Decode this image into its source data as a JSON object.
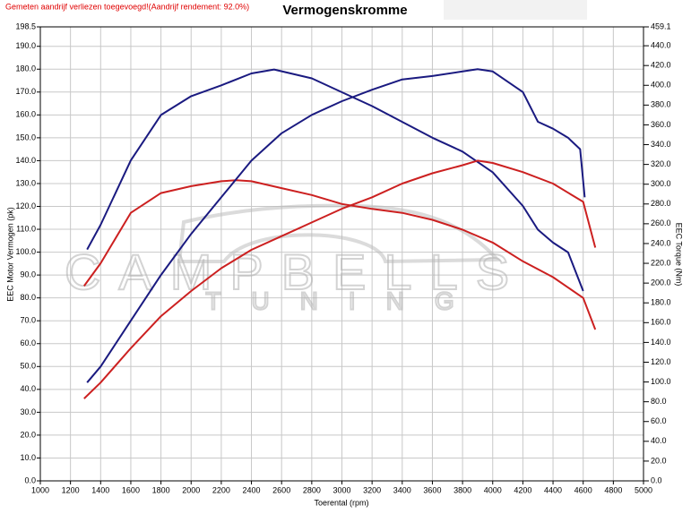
{
  "chart_data": {
    "type": "line",
    "notice": "Gemeten aandrijf verliezen toegevoegd!(Aandrijf rendement: 92.0%)",
    "title": "Vermogenskromme",
    "xlabel": "Toerental (rpm)",
    "ylabel": "EEC Motor Vermogen (pk)",
    "y2label": "EEC Torque (Nm)",
    "watermark": [
      "CAMPBELLS",
      "TUNING"
    ],
    "grid": true,
    "xlim": [
      1000,
      5000
    ],
    "xticks": [
      1000,
      1200,
      1400,
      1600,
      1800,
      2000,
      2200,
      2400,
      2600,
      2800,
      3000,
      3200,
      3400,
      3600,
      3800,
      4000,
      4200,
      4400,
      4600,
      4800,
      5000
    ],
    "ylim": [
      0,
      198.5
    ],
    "yticks": [
      {
        "value": 0,
        "label": "0.0"
      },
      {
        "value": 10,
        "label": "10.0"
      },
      {
        "value": 20,
        "label": "20.0"
      },
      {
        "value": 30,
        "label": "30.0"
      },
      {
        "value": 40,
        "label": "40.0"
      },
      {
        "value": 50,
        "label": "50.0"
      },
      {
        "value": 60,
        "label": "60.0"
      },
      {
        "value": 70,
        "label": "70.0"
      },
      {
        "value": 80,
        "label": "80.0"
      },
      {
        "value": 90,
        "label": "90.0"
      },
      {
        "value": 100,
        "label": "100.0"
      },
      {
        "value": 110,
        "label": "110.0"
      },
      {
        "value": 120,
        "label": "120.0"
      },
      {
        "value": 130,
        "label": "130.0"
      },
      {
        "value": 140,
        "label": "140.0"
      },
      {
        "value": 150,
        "label": "150.0"
      },
      {
        "value": 160,
        "label": "160.0"
      },
      {
        "value": 170,
        "label": "170.0"
      },
      {
        "value": 180,
        "label": "180.0"
      },
      {
        "value": 190,
        "label": "190.0"
      },
      198.5
    ],
    "y2lim": [
      0,
      459.1
    ],
    "y2ticks": [
      {
        "value": 0,
        "label": "0.0"
      },
      {
        "value": 20,
        "label": "20.0"
      },
      {
        "value": 40,
        "label": "40.0"
      },
      {
        "value": 60,
        "label": "60.0"
      },
      {
        "value": 80,
        "label": "80.0"
      },
      {
        "value": 100,
        "label": "100.0"
      },
      {
        "value": 120,
        "label": "120.0"
      },
      {
        "value": 140,
        "label": "140.0"
      },
      {
        "value": 160,
        "label": "160.0"
      },
      {
        "value": 180,
        "label": "180.0"
      },
      {
        "value": 200,
        "label": "200.0"
      },
      {
        "value": 220,
        "label": "220.0"
      },
      {
        "value": 240,
        "label": "240.0"
      },
      {
        "value": 260,
        "label": "260.0"
      },
      {
        "value": 280,
        "label": "280.0"
      },
      {
        "value": 300,
        "label": "300.0"
      },
      {
        "value": 320,
        "label": "320.0"
      },
      {
        "value": 340,
        "label": "340.0"
      },
      {
        "value": 360,
        "label": "360.0"
      },
      {
        "value": 380,
        "label": "380.0"
      },
      {
        "value": 400,
        "label": "400.0"
      },
      {
        "value": 420,
        "label": "420.0"
      },
      {
        "value": 440,
        "label": "440.0"
      },
      459.1
    ],
    "series": [
      {
        "color": "#1a1a80",
        "axis": "y2",
        "x": [
          1310,
          1400,
          1600,
          1800,
          2000,
          2200,
          2400,
          2550,
          2800,
          3000,
          3200,
          3400,
          3600,
          3800,
          4000,
          4200,
          4300,
          4400,
          4500,
          4600
        ],
        "values": [
          234,
          259,
          324,
          370,
          389,
          400,
          412,
          416,
          407,
          393,
          379,
          363,
          347,
          333,
          312,
          278,
          254,
          241,
          231,
          192
        ]
      },
      {
        "color": "#cc2020",
        "axis": "y2",
        "x": [
          1290,
          1400,
          1600,
          1800,
          2000,
          2200,
          2300,
          2400,
          2600,
          2800,
          3000,
          3200,
          3400,
          3600,
          3800,
          4000,
          4200,
          4400,
          4600,
          4680
        ],
        "values": [
          197,
          220,
          271,
          291,
          298,
          303,
          304,
          303,
          296,
          289,
          280,
          275,
          271,
          264,
          254,
          241,
          222,
          206,
          185,
          153
        ]
      },
      {
        "color": "#1a1a80",
        "x": [
          1310,
          1400,
          1600,
          1800,
          2000,
          2200,
          2400,
          2600,
          2800,
          3000,
          3200,
          3400,
          3600,
          3800,
          3900,
          4000,
          4200,
          4300,
          4400,
          4500,
          4580,
          4610
        ],
        "values": [
          43,
          50,
          70,
          90,
          108,
          124,
          140,
          152,
          160,
          166,
          171,
          175.5,
          177,
          179,
          180,
          179,
          170,
          157,
          154,
          150,
          145,
          124
        ]
      },
      {
        "color": "#cc2020",
        "x": [
          1290,
          1400,
          1600,
          1800,
          2000,
          2200,
          2400,
          2600,
          2800,
          3000,
          3200,
          3400,
          3600,
          3800,
          3900,
          4000,
          4200,
          4400,
          4600,
          4680
        ],
        "values": [
          36,
          43,
          58,
          72,
          83,
          93,
          101,
          107,
          113,
          119,
          124,
          130,
          134.5,
          138,
          140,
          139,
          135,
          130,
          122,
          102
        ]
      }
    ]
  }
}
